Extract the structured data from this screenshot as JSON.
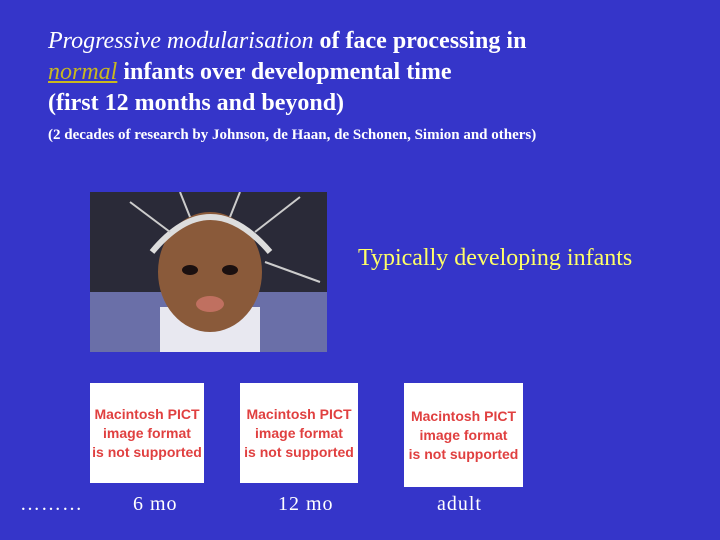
{
  "title": {
    "italic_lead": "Progressive modularisation",
    "rest_line1": " of face processing in",
    "italic_word": "normal",
    "rest_line2": " infants over developmental time",
    "line3": "(first 12 months and beyond)"
  },
  "subtitle": "(2 decades of research by Johnson, de Haan, de Schonen, Simion and others)",
  "caption": "Typically developing infants",
  "placeholders": [
    [
      "Macintosh PICT",
      "image format",
      "is not supported"
    ],
    [
      "Macintosh PICT",
      "image format",
      "is not supported"
    ],
    [
      "Macintosh PICT",
      "image format",
      "is not supported"
    ]
  ],
  "timeline": {
    "dots": "………",
    "labels": [
      "6 mo",
      "12 mo",
      "adult"
    ]
  }
}
